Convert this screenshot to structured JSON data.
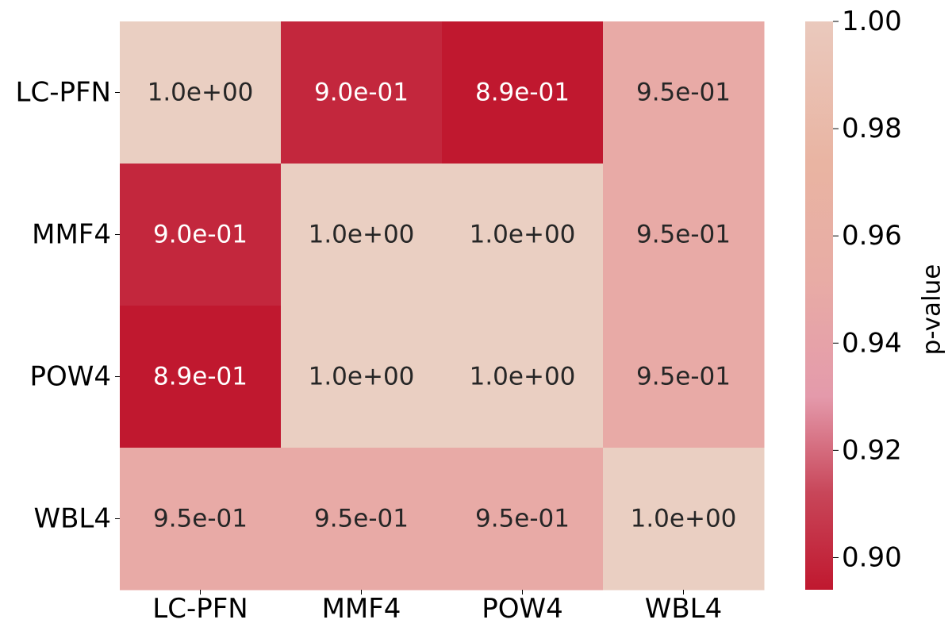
{
  "chart_data": {
    "type": "heatmap",
    "rows": [
      "LC-PFN",
      "MMF4",
      "POW4",
      "WBL4"
    ],
    "columns": [
      "LC-PFN",
      "MMF4",
      "POW4",
      "WBL4"
    ],
    "values": [
      [
        1.0,
        0.9,
        0.89,
        0.95
      ],
      [
        0.9,
        1.0,
        1.0,
        0.95
      ],
      [
        0.89,
        1.0,
        1.0,
        0.95
      ],
      [
        0.95,
        0.95,
        0.95,
        1.0
      ]
    ],
    "cell_labels": [
      [
        "1.0e+00",
        "9.0e-01",
        "8.9e-01",
        "9.5e-01"
      ],
      [
        "9.0e-01",
        "1.0e+00",
        "1.0e+00",
        "9.5e-01"
      ],
      [
        "8.9e-01",
        "1.0e+00",
        "1.0e+00",
        "9.5e-01"
      ],
      [
        "9.5e-01",
        "9.5e-01",
        "9.5e-01",
        "1.0e+00"
      ]
    ],
    "colorbar": {
      "label": "p-value",
      "range": [
        0.894,
        1.0
      ],
      "ticks": [
        0.9,
        0.92,
        0.94,
        0.96,
        0.98,
        1.0
      ],
      "tick_labels": [
        "0.90",
        "0.92",
        "0.94",
        "0.96",
        "0.98",
        "1.00"
      ],
      "colormap": [
        "#c0182f",
        "#e49aab",
        "#e9b4a2",
        "#eac9bd"
      ]
    },
    "light_text_color": "#ffffff",
    "dark_text_color": "#262626"
  }
}
